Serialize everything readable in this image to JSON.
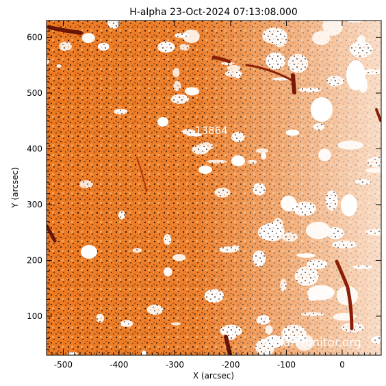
{
  "title": "H-alpha 23-Oct-2024 07:13:08.000",
  "axes": {
    "x_label": "X (arcsec)",
    "y_label": "Y (arcsec)",
    "x_range": [
      -530,
      70
    ],
    "y_range": [
      30,
      630
    ],
    "x_ticks": [
      "-500",
      "-400",
      "-300",
      "-200",
      "-100",
      "0"
    ],
    "y_ticks": [
      "100",
      "200",
      "300",
      "400",
      "500",
      "600"
    ]
  },
  "image": {
    "description_colors": {
      "base": "#ec7a22",
      "bright": "#ffffff",
      "dark": "#1a0a04",
      "filament": "#8a1f08"
    }
  },
  "region_label": "13864",
  "watermark": "SolarMonitor.org"
}
